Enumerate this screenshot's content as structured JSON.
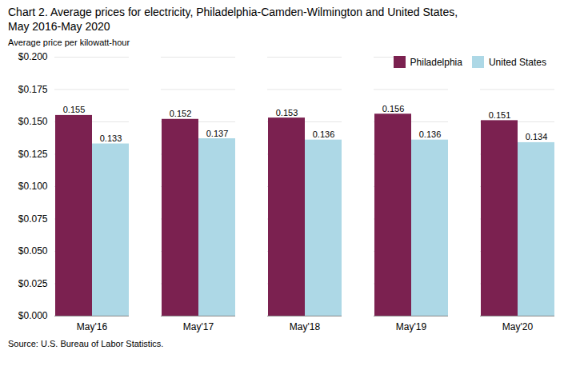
{
  "chart_data": {
    "type": "bar",
    "title": "Chart 2. Average prices for electricity, Philadelphia-Camden-Wilmington and United States,",
    "subtitle": "May 2016-May 2020",
    "ylabel": "Average price per kilowatt-hour",
    "caption": "Source: U.S. Bureau of Labor Statistics.",
    "categories": [
      "May'16",
      "May'17",
      "May'18",
      "May'19",
      "May'20"
    ],
    "series": [
      {
        "name": "Philadelphia",
        "color": "#7B2150",
        "values": [
          0.155,
          0.152,
          0.153,
          0.156,
          0.151
        ]
      },
      {
        "name": "United States",
        "color": "#ADD8E6",
        "values": [
          0.133,
          0.137,
          0.136,
          0.136,
          0.134
        ]
      }
    ],
    "ylim": [
      0.0,
      0.2
    ],
    "yticks": [
      {
        "value": 0.0,
        "label": "$0.000"
      },
      {
        "value": 0.025,
        "label": "$0.025"
      },
      {
        "value": 0.05,
        "label": "$0.050"
      },
      {
        "value": 0.075,
        "label": "$0.075"
      },
      {
        "value": 0.1,
        "label": "$0.100"
      },
      {
        "value": 0.125,
        "label": "$0.125"
      },
      {
        "value": 0.15,
        "label": "$0.150"
      },
      {
        "value": 0.175,
        "label": "$0.175"
      },
      {
        "value": 0.2,
        "label": "$0.200"
      }
    ],
    "grid": true,
    "legend": "top-right",
    "data_labels": true
  }
}
